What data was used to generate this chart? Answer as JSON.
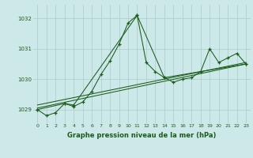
{
  "title": "Graphe pression niveau de la mer (hPa)",
  "bg_color": "#cce8e8",
  "grid_color": "#aacccc",
  "line_color": "#1a5c1a",
  "xlim": [
    -0.5,
    23.5
  ],
  "ylim": [
    1028.55,
    1032.45
  ],
  "yticks": [
    1029,
    1030,
    1031,
    1032
  ],
  "xticks": [
    0,
    1,
    2,
    3,
    4,
    5,
    6,
    7,
    8,
    9,
    10,
    11,
    12,
    13,
    14,
    15,
    16,
    17,
    18,
    19,
    20,
    21,
    22,
    23
  ],
  "series1_x": [
    0,
    1,
    2,
    3,
    4,
    5,
    6,
    7,
    8,
    9,
    10,
    11,
    12,
    13,
    14,
    15,
    16,
    17,
    18,
    19,
    20,
    21,
    22,
    23
  ],
  "series1_y": [
    1029.0,
    1028.8,
    1028.9,
    1029.2,
    1029.1,
    1029.25,
    1029.6,
    1030.15,
    1030.6,
    1031.15,
    1031.85,
    1032.1,
    1030.55,
    1030.25,
    1030.05,
    1029.9,
    1030.0,
    1030.05,
    1030.25,
    1031.0,
    1030.55,
    1030.7,
    1030.85,
    1030.5
  ],
  "series2_x": [
    0,
    3,
    4,
    11,
    14,
    23
  ],
  "series2_y": [
    1029.0,
    1029.2,
    1029.15,
    1032.1,
    1030.05,
    1030.5
  ],
  "series3_x": [
    0,
    23
  ],
  "series3_y": [
    1029.05,
    1030.5
  ],
  "series4_x": [
    0,
    23
  ],
  "series4_y": [
    1029.15,
    1030.55
  ]
}
